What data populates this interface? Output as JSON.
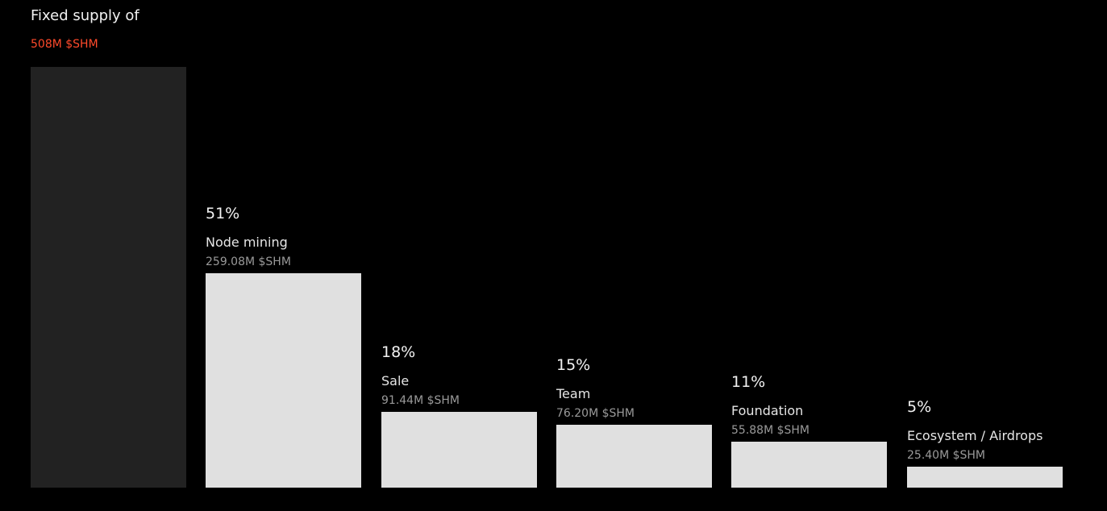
{
  "header": {
    "title": "Fixed supply of",
    "total_label": "508M $SHM"
  },
  "colors": {
    "background": "#000000",
    "accent": "#ff4a2b",
    "total_bar": "#222222",
    "segment_bar": "#e0e0e0",
    "text_primary": "#f2f2f2",
    "text_secondary": "#9a9a9a"
  },
  "chart_data": {
    "type": "bar",
    "title": "Fixed supply of",
    "total": 508,
    "total_unit": "M $SHM",
    "total_label": "508M $SHM",
    "ylim": [
      0,
      508
    ],
    "categories": [
      "Node mining",
      "Sale",
      "Team",
      "Foundation",
      "Ecosystem / Airdrops"
    ],
    "percent_labels": [
      "51%",
      "18%",
      "15%",
      "11%",
      "5%"
    ],
    "amount_labels": [
      "259.08M $SHM",
      "91.44M $SHM",
      "76.20M $SHM",
      "55.88M $SHM",
      "25.40M $SHM"
    ],
    "values": [
      259.08,
      91.44,
      76.2,
      55.88,
      25.4
    ],
    "grid": false,
    "legend": "none"
  }
}
